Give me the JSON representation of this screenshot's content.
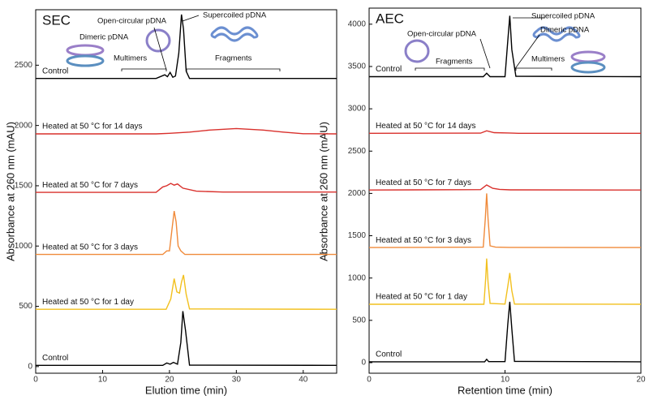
{
  "chart_data": [
    {
      "type": "line",
      "title": "SEC",
      "x_label": "Elution time (min)",
      "y_label": "Absorbance at 260 nm (mAU)",
      "xlim": [
        0,
        45
      ],
      "ylim": [
        -55,
        2960
      ],
      "xticks": [
        0,
        10,
        20,
        30,
        40
      ],
      "yticks": [
        0,
        500,
        1000,
        1500,
        2000,
        2500
      ],
      "annotations": [
        "Open-circular pDNA",
        "Supercoiled pDNA",
        "Dimeric pDNA",
        "Multimers",
        "Fragments"
      ],
      "series": [
        {
          "name": "Control",
          "color": "#000000",
          "x": [
            0,
            18,
            19.3,
            19.7,
            20.1,
            20.5,
            20.9,
            21.4,
            21.8,
            22.1,
            22.5,
            23,
            45
          ],
          "values": [
            2390,
            2390,
            2420,
            2405,
            2440,
            2400,
            2410,
            2600,
            2920,
            2800,
            2450,
            2390,
            2390
          ]
        },
        {
          "name": "Heated at 50 °C for 14 days",
          "color": "#d9302c",
          "x": [
            0,
            18,
            20,
            23,
            26,
            30,
            34,
            37,
            40,
            45
          ],
          "values": [
            1930,
            1930,
            1935,
            1945,
            1962,
            1975,
            1962,
            1945,
            1932,
            1930
          ]
        },
        {
          "name": "Heated at 50 °C for 7 days",
          "color": "#d9302c",
          "x": [
            0,
            18,
            19,
            19.6,
            20.2,
            20.7,
            21.2,
            22,
            24,
            28,
            45
          ],
          "values": [
            1445,
            1445,
            1490,
            1500,
            1520,
            1505,
            1515,
            1480,
            1455,
            1448,
            1448
          ]
        },
        {
          "name": "Heated at 50 °C for 3 days",
          "color": "#f08a3a",
          "x": [
            0,
            19,
            19.6,
            20,
            20.4,
            20.7,
            21,
            21.3,
            21.7,
            22.3,
            45
          ],
          "values": [
            930,
            930,
            960,
            960,
            1150,
            1290,
            1200,
            1000,
            960,
            930,
            930
          ]
        },
        {
          "name": "Heated at 50 °C for 1 day",
          "color": "#f2c01e",
          "x": [
            0,
            19.5,
            20.2,
            20.7,
            21.1,
            21.5,
            21.8,
            22.1,
            22.5,
            23,
            45
          ],
          "values": [
            475,
            475,
            560,
            730,
            620,
            610,
            700,
            760,
            600,
            478,
            475
          ]
        },
        {
          "name": "Control",
          "color": "#000000",
          "x": [
            0,
            19,
            19.6,
            20.1,
            20.6,
            21.2,
            21.7,
            22,
            22.4,
            23,
            45
          ],
          "values": [
            10,
            10,
            30,
            20,
            35,
            20,
            200,
            460,
            300,
            12,
            10
          ]
        }
      ]
    },
    {
      "type": "line",
      "title": "AEC",
      "x_label": "Retention time (min)",
      "y_label": "Absorbance at 260 nm (mAU)",
      "xlim": [
        0,
        20
      ],
      "ylim": [
        -125,
        4190
      ],
      "xticks": [
        0,
        10,
        20
      ],
      "yticks": [
        0,
        500,
        1000,
        1500,
        2000,
        2500,
        3000,
        3500,
        4000
      ],
      "annotations": [
        "Supercoiled pDNA",
        "Open-circular pDNA",
        "Dimeric pDNA",
        "Fragments",
        "Multimers"
      ],
      "series": [
        {
          "name": "Control",
          "color": "#000000",
          "x": [
            0,
            8.4,
            8.65,
            8.9,
            10,
            10.2,
            10.35,
            10.5,
            10.8,
            20
          ],
          "values": [
            3380,
            3380,
            3420,
            3380,
            3380,
            3800,
            4100,
            3700,
            3385,
            3380
          ]
        },
        {
          "name": "Heated at 50 °C for 14 days",
          "color": "#d9302c",
          "x": [
            0,
            8.2,
            8.65,
            9.2,
            10.3,
            11,
            20
          ],
          "values": [
            2710,
            2712,
            2740,
            2718,
            2714,
            2710,
            2710
          ]
        },
        {
          "name": "Heated at 50 °C for 7 days",
          "color": "#d9302c",
          "x": [
            0,
            8.2,
            8.65,
            9.1,
            9.6,
            10.4,
            20
          ],
          "values": [
            2040,
            2045,
            2100,
            2060,
            2048,
            2042,
            2040
          ]
        },
        {
          "name": "Heated at 50 °C for 3 days",
          "color": "#f08a3a",
          "x": [
            0,
            8.4,
            8.55,
            8.65,
            8.75,
            8.9,
            9.3,
            10.3,
            20
          ],
          "values": [
            1360,
            1365,
            1700,
            2000,
            1700,
            1380,
            1365,
            1362,
            1360
          ]
        },
        {
          "name": "Heated at 50 °C for 1 day",
          "color": "#f2c01e",
          "x": [
            0,
            8.45,
            8.58,
            8.65,
            8.75,
            8.9,
            10,
            10.2,
            10.35,
            10.5,
            10.7,
            20
          ],
          "values": [
            690,
            690,
            1000,
            1230,
            950,
            700,
            692,
            900,
            1060,
            850,
            692,
            690
          ]
        },
        {
          "name": "Control",
          "color": "#000000",
          "x": [
            0,
            8.5,
            8.65,
            8.8,
            10,
            10.2,
            10.35,
            10.5,
            10.7,
            20
          ],
          "values": [
            10,
            10,
            40,
            12,
            12,
            450,
            720,
            400,
            15,
            10
          ]
        }
      ]
    }
  ]
}
